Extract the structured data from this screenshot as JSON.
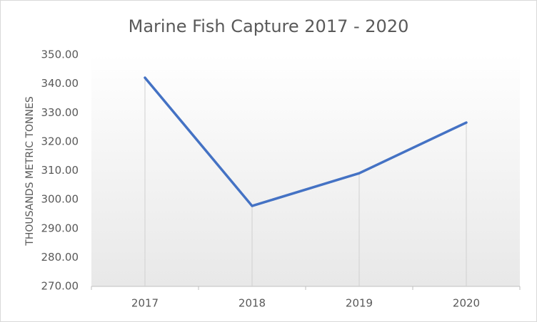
{
  "chart_data": {
    "type": "line",
    "title": "Marine Fish Capture 2017 - 2020",
    "y_label": "THOUSANDS METRIC TONNES",
    "categories": [
      "2017",
      "2018",
      "2019",
      "2020"
    ],
    "values": [
      342.1,
      297.8,
      309.1,
      326.6
    ],
    "color": "#4472c4",
    "drop_lines": true,
    "ylim": [
      270,
      350
    ],
    "yticks": [
      {
        "value": 270,
        "label": "270.00"
      },
      {
        "value": 280,
        "label": "280.00"
      },
      {
        "value": 290,
        "label": "290.00"
      },
      {
        "value": 300,
        "label": "300.00"
      },
      {
        "value": 310,
        "label": "310.00"
      },
      {
        "value": 320,
        "label": "320.00"
      },
      {
        "value": 330,
        "label": "330.00"
      },
      {
        "value": 340,
        "label": "340.00"
      },
      {
        "value": 350,
        "label": "350.00"
      }
    ]
  }
}
